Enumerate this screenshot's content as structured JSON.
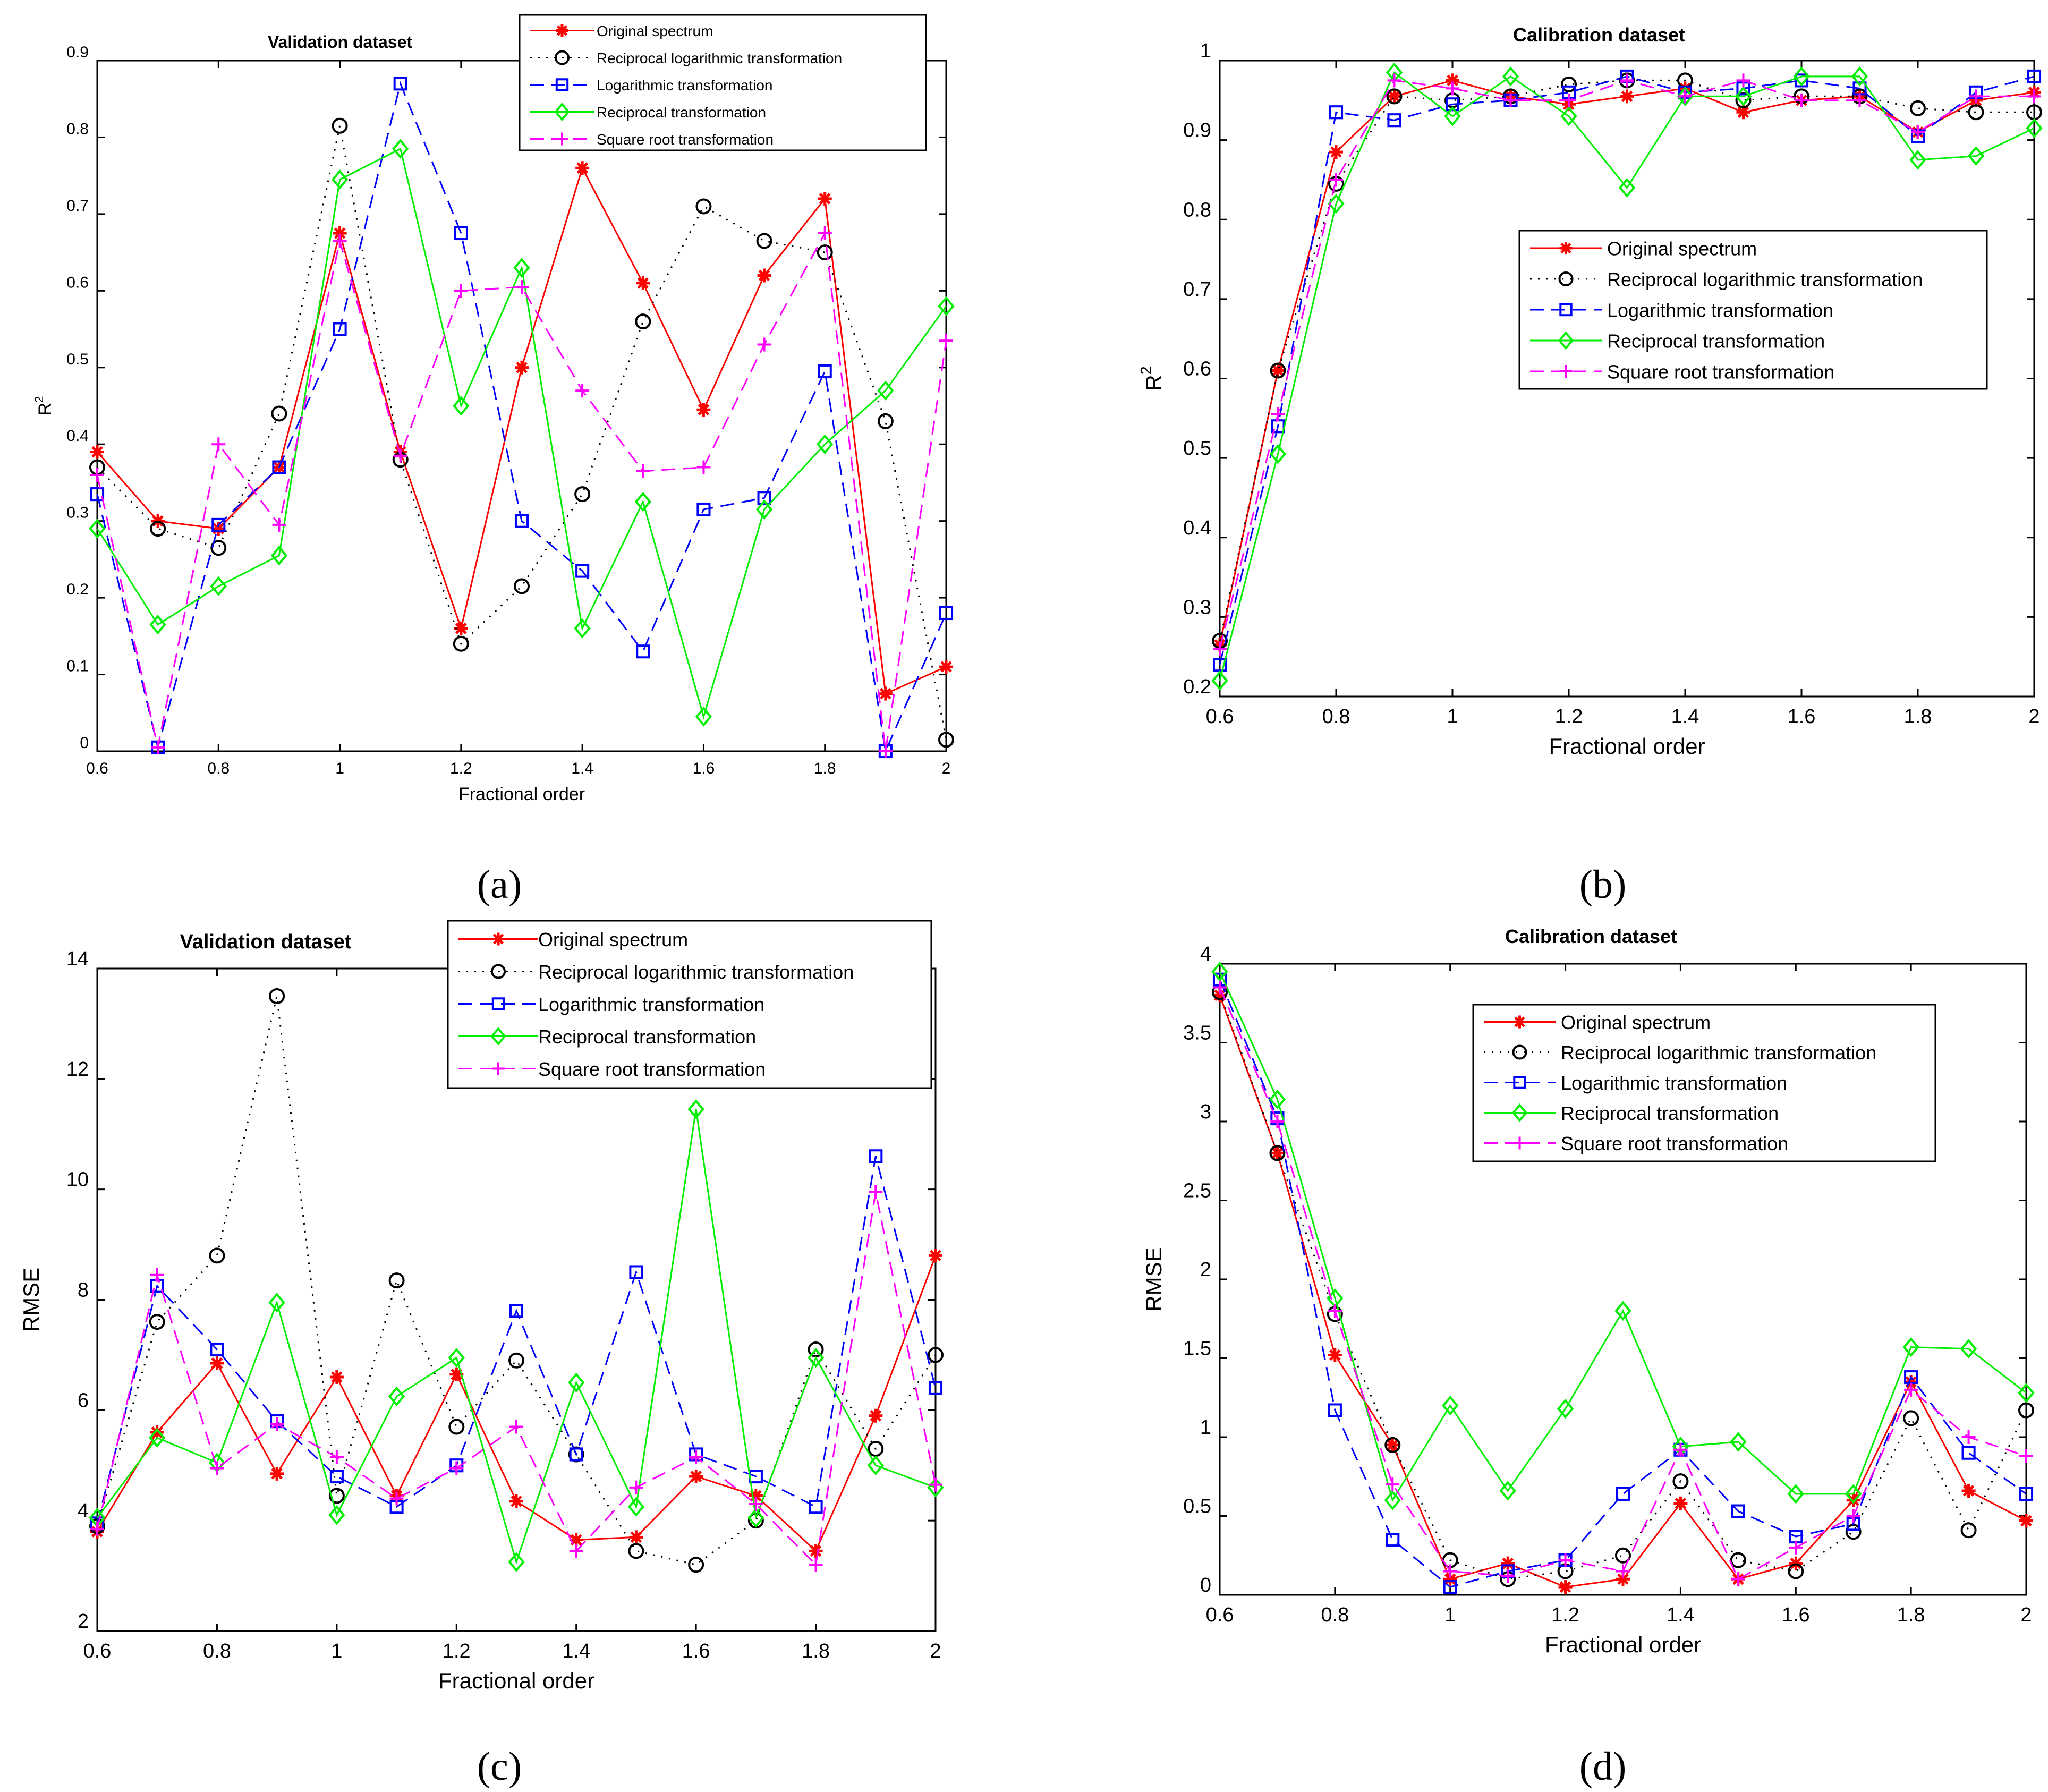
{
  "colors": {
    "original": "#ff0000",
    "reciprocal_log": "#000000",
    "logarithmic": "#0000ff",
    "reciprocal": "#00ee00",
    "square_root": "#ff00ff"
  },
  "legend_labels": [
    "Original spectrum",
    "Reciprocal logarithmic transformation",
    "Logarithmic transformation",
    "Reciprocal transformation",
    "Square root transformation"
  ],
  "panel_labels": [
    "(a)",
    "(b)",
    "(c)",
    "(d)"
  ],
  "chart_data": [
    {
      "type": "line",
      "title": "Validation dataset",
      "xlabel": "Fractional order",
      "ylabel": "R",
      "ylabel_sup": "2",
      "xlim": [
        0.6,
        2.0
      ],
      "ylim": [
        0,
        0.9
      ],
      "xticks": [
        "0.6",
        "0.8",
        "1",
        "1.2",
        "1.4",
        "1.6",
        "1.8",
        "2"
      ],
      "yticks": [
        "0",
        "0.1",
        "0.2",
        "0.3",
        "0.4",
        "0.5",
        "0.6",
        "0.7",
        "0.8",
        "0.9"
      ],
      "legend_position": "top-right",
      "x": [
        0.6,
        0.7,
        0.8,
        0.9,
        1.0,
        1.1,
        1.2,
        1.3,
        1.4,
        1.5,
        1.6,
        1.7,
        1.8,
        1.9,
        2.0
      ],
      "series": [
        {
          "name": "Original spectrum",
          "values": [
            0.39,
            0.3,
            0.29,
            0.37,
            0.675,
            0.39,
            0.16,
            0.5,
            0.76,
            0.61,
            0.445,
            0.62,
            0.72,
            0.075,
            0.11
          ]
        },
        {
          "name": "Reciprocal logarithmic transformation",
          "values": [
            0.37,
            0.29,
            0.265,
            0.44,
            0.815,
            0.38,
            0.14,
            0.215,
            0.335,
            0.56,
            0.71,
            0.665,
            0.65,
            0.43,
            0.015
          ]
        },
        {
          "name": "Logarithmic transformation",
          "values": [
            0.335,
            0.005,
            0.295,
            0.37,
            0.55,
            0.87,
            0.675,
            0.3,
            0.235,
            0.13,
            0.315,
            0.33,
            0.495,
            0.0,
            0.18
          ]
        },
        {
          "name": "Reciprocal transformation",
          "values": [
            0.29,
            0.165,
            0.215,
            0.255,
            0.745,
            0.785,
            0.45,
            0.63,
            0.16,
            0.325,
            0.045,
            0.315,
            0.4,
            0.47,
            0.58
          ]
        },
        {
          "name": "Square root transformation",
          "values": [
            0.36,
            0.005,
            0.4,
            0.295,
            0.665,
            0.385,
            0.6,
            0.605,
            0.47,
            0.365,
            0.37,
            0.53,
            0.675,
            0.0,
            0.535
          ]
        }
      ]
    },
    {
      "type": "line",
      "title": "Calibration dataset",
      "xlabel": "Fractional order",
      "ylabel": "R",
      "ylabel_sup": "2",
      "xlim": [
        0.6,
        2.0
      ],
      "ylim": [
        0.2,
        1.0
      ],
      "xticks": [
        "0.6",
        "0.8",
        "1",
        "1.2",
        "1.4",
        "1.6",
        "1.8",
        "2"
      ],
      "yticks": [
        "0.2",
        "0.3",
        "0.4",
        "0.5",
        "0.6",
        "0.7",
        "0.8",
        "0.9",
        "1"
      ],
      "legend_position": "center",
      "x": [
        0.6,
        0.7,
        0.8,
        0.9,
        1.0,
        1.1,
        1.2,
        1.3,
        1.4,
        1.5,
        1.6,
        1.7,
        1.8,
        1.9,
        2.0
      ],
      "series": [
        {
          "name": "Original spectrum",
          "values": [
            0.265,
            0.61,
            0.885,
            0.955,
            0.975,
            0.955,
            0.945,
            0.955,
            0.965,
            0.935,
            0.95,
            0.955,
            0.91,
            0.95,
            0.96
          ]
        },
        {
          "name": "Reciprocal logarithmic transformation",
          "values": [
            0.27,
            0.61,
            0.845,
            0.955,
            0.95,
            0.955,
            0.97,
            0.975,
            0.975,
            0.95,
            0.955,
            0.955,
            0.94,
            0.935,
            0.935
          ]
        },
        {
          "name": "Logarithmic transformation",
          "values": [
            0.24,
            0.54,
            0.935,
            0.925,
            0.945,
            0.95,
            0.96,
            0.98,
            0.96,
            0.965,
            0.975,
            0.965,
            0.905,
            0.96,
            0.98
          ]
        },
        {
          "name": "Reciprocal transformation",
          "values": [
            0.22,
            0.505,
            0.82,
            0.985,
            0.93,
            0.98,
            0.93,
            0.84,
            0.955,
            0.955,
            0.98,
            0.98,
            0.875,
            0.88,
            0.915
          ]
        },
        {
          "name": "Square root transformation",
          "values": [
            0.26,
            0.555,
            0.85,
            0.975,
            0.965,
            0.95,
            0.95,
            0.975,
            0.955,
            0.975,
            0.95,
            0.95,
            0.91,
            0.955,
            0.955
          ]
        }
      ]
    },
    {
      "type": "line",
      "title": "Validation dataset",
      "xlabel": "Fractional order",
      "ylabel": "RMSE",
      "xlim": [
        0.6,
        2.0
      ],
      "ylim": [
        2,
        14
      ],
      "xticks": [
        "0.6",
        "0.8",
        "1",
        "1.2",
        "1.4",
        "1.6",
        "1.8",
        "2"
      ],
      "yticks": [
        "2",
        "4",
        "6",
        "8",
        "10",
        "12",
        "14"
      ],
      "legend_position": "top-right",
      "x": [
        0.6,
        0.7,
        0.8,
        0.9,
        1.0,
        1.1,
        1.2,
        1.3,
        1.4,
        1.5,
        1.6,
        1.7,
        1.8,
        1.9,
        2.0
      ],
      "series": [
        {
          "name": "Original spectrum",
          "values": [
            3.8,
            5.6,
            6.85,
            4.85,
            6.6,
            4.45,
            6.65,
            4.35,
            3.65,
            3.7,
            4.8,
            4.45,
            3.45,
            5.9,
            8.8
          ]
        },
        {
          "name": "Reciprocal logarithmic transformation",
          "values": [
            3.9,
            7.6,
            8.8,
            13.5,
            4.45,
            8.35,
            5.7,
            6.9,
            5.2,
            3.45,
            3.2,
            4.0,
            7.1,
            5.3,
            7.0
          ]
        },
        {
          "name": "Logarithmic transformation",
          "values": [
            3.95,
            8.25,
            7.1,
            5.8,
            4.8,
            4.25,
            5.0,
            7.8,
            5.2,
            8.5,
            5.2,
            4.8,
            4.25,
            10.6,
            6.4
          ]
        },
        {
          "name": "Reciprocal transformation",
          "values": [
            4.05,
            5.5,
            5.05,
            7.95,
            4.1,
            6.25,
            6.95,
            3.25,
            6.5,
            4.25,
            11.45,
            4.05,
            6.95,
            5.0,
            4.6
          ]
        },
        {
          "name": "Square root transformation",
          "values": [
            3.85,
            8.45,
            4.95,
            5.75,
            5.15,
            4.4,
            4.95,
            5.7,
            3.45,
            4.6,
            5.15,
            4.3,
            3.2,
            9.95,
            4.65
          ]
        }
      ]
    },
    {
      "type": "line",
      "title": "Calibration dataset",
      "xlabel": "Fractional order",
      "ylabel": "RMSE",
      "xlim": [
        0.6,
        2.0
      ],
      "ylim": [
        0,
        4
      ],
      "xticks": [
        "0.6",
        "0.8",
        "1",
        "1.2",
        "1.4",
        "1.6",
        "1.8",
        "2"
      ],
      "yticks": [
        "0",
        "0.5",
        "1",
        "1.5",
        "2",
        "2.5",
        "3",
        "3.5",
        "4"
      ],
      "legend_position": "top-right",
      "x": [
        0.6,
        0.7,
        0.8,
        0.9,
        1.0,
        1.1,
        1.2,
        1.3,
        1.4,
        1.5,
        1.6,
        1.7,
        1.8,
        1.9,
        2.0
      ],
      "series": [
        {
          "name": "Original spectrum",
          "values": [
            3.8,
            2.8,
            1.52,
            0.95,
            0.1,
            0.2,
            0.05,
            0.1,
            0.58,
            0.1,
            0.2,
            0.6,
            1.35,
            0.66,
            0.47
          ]
        },
        {
          "name": "Reciprocal logarithmic transformation",
          "values": [
            3.82,
            2.8,
            1.78,
            0.95,
            0.22,
            0.1,
            0.15,
            0.25,
            0.72,
            0.22,
            0.15,
            0.4,
            1.12,
            0.41,
            1.17
          ]
        },
        {
          "name": "Logarithmic transformation",
          "values": [
            3.9,
            3.02,
            1.17,
            0.35,
            0.05,
            0.15,
            0.22,
            0.64,
            0.92,
            0.53,
            0.37,
            0.45,
            1.38,
            0.9,
            0.64
          ]
        },
        {
          "name": "Reciprocal transformation",
          "values": [
            3.95,
            3.14,
            1.88,
            0.6,
            1.2,
            0.66,
            1.18,
            1.8,
            0.94,
            0.97,
            0.64,
            0.64,
            1.57,
            1.56,
            1.28
          ]
        },
        {
          "name": "Square root transformation",
          "values": [
            3.85,
            3.0,
            1.8,
            0.7,
            0.15,
            0.12,
            0.22,
            0.15,
            0.92,
            0.1,
            0.3,
            0.5,
            1.3,
            1.0,
            0.88
          ]
        }
      ]
    }
  ]
}
